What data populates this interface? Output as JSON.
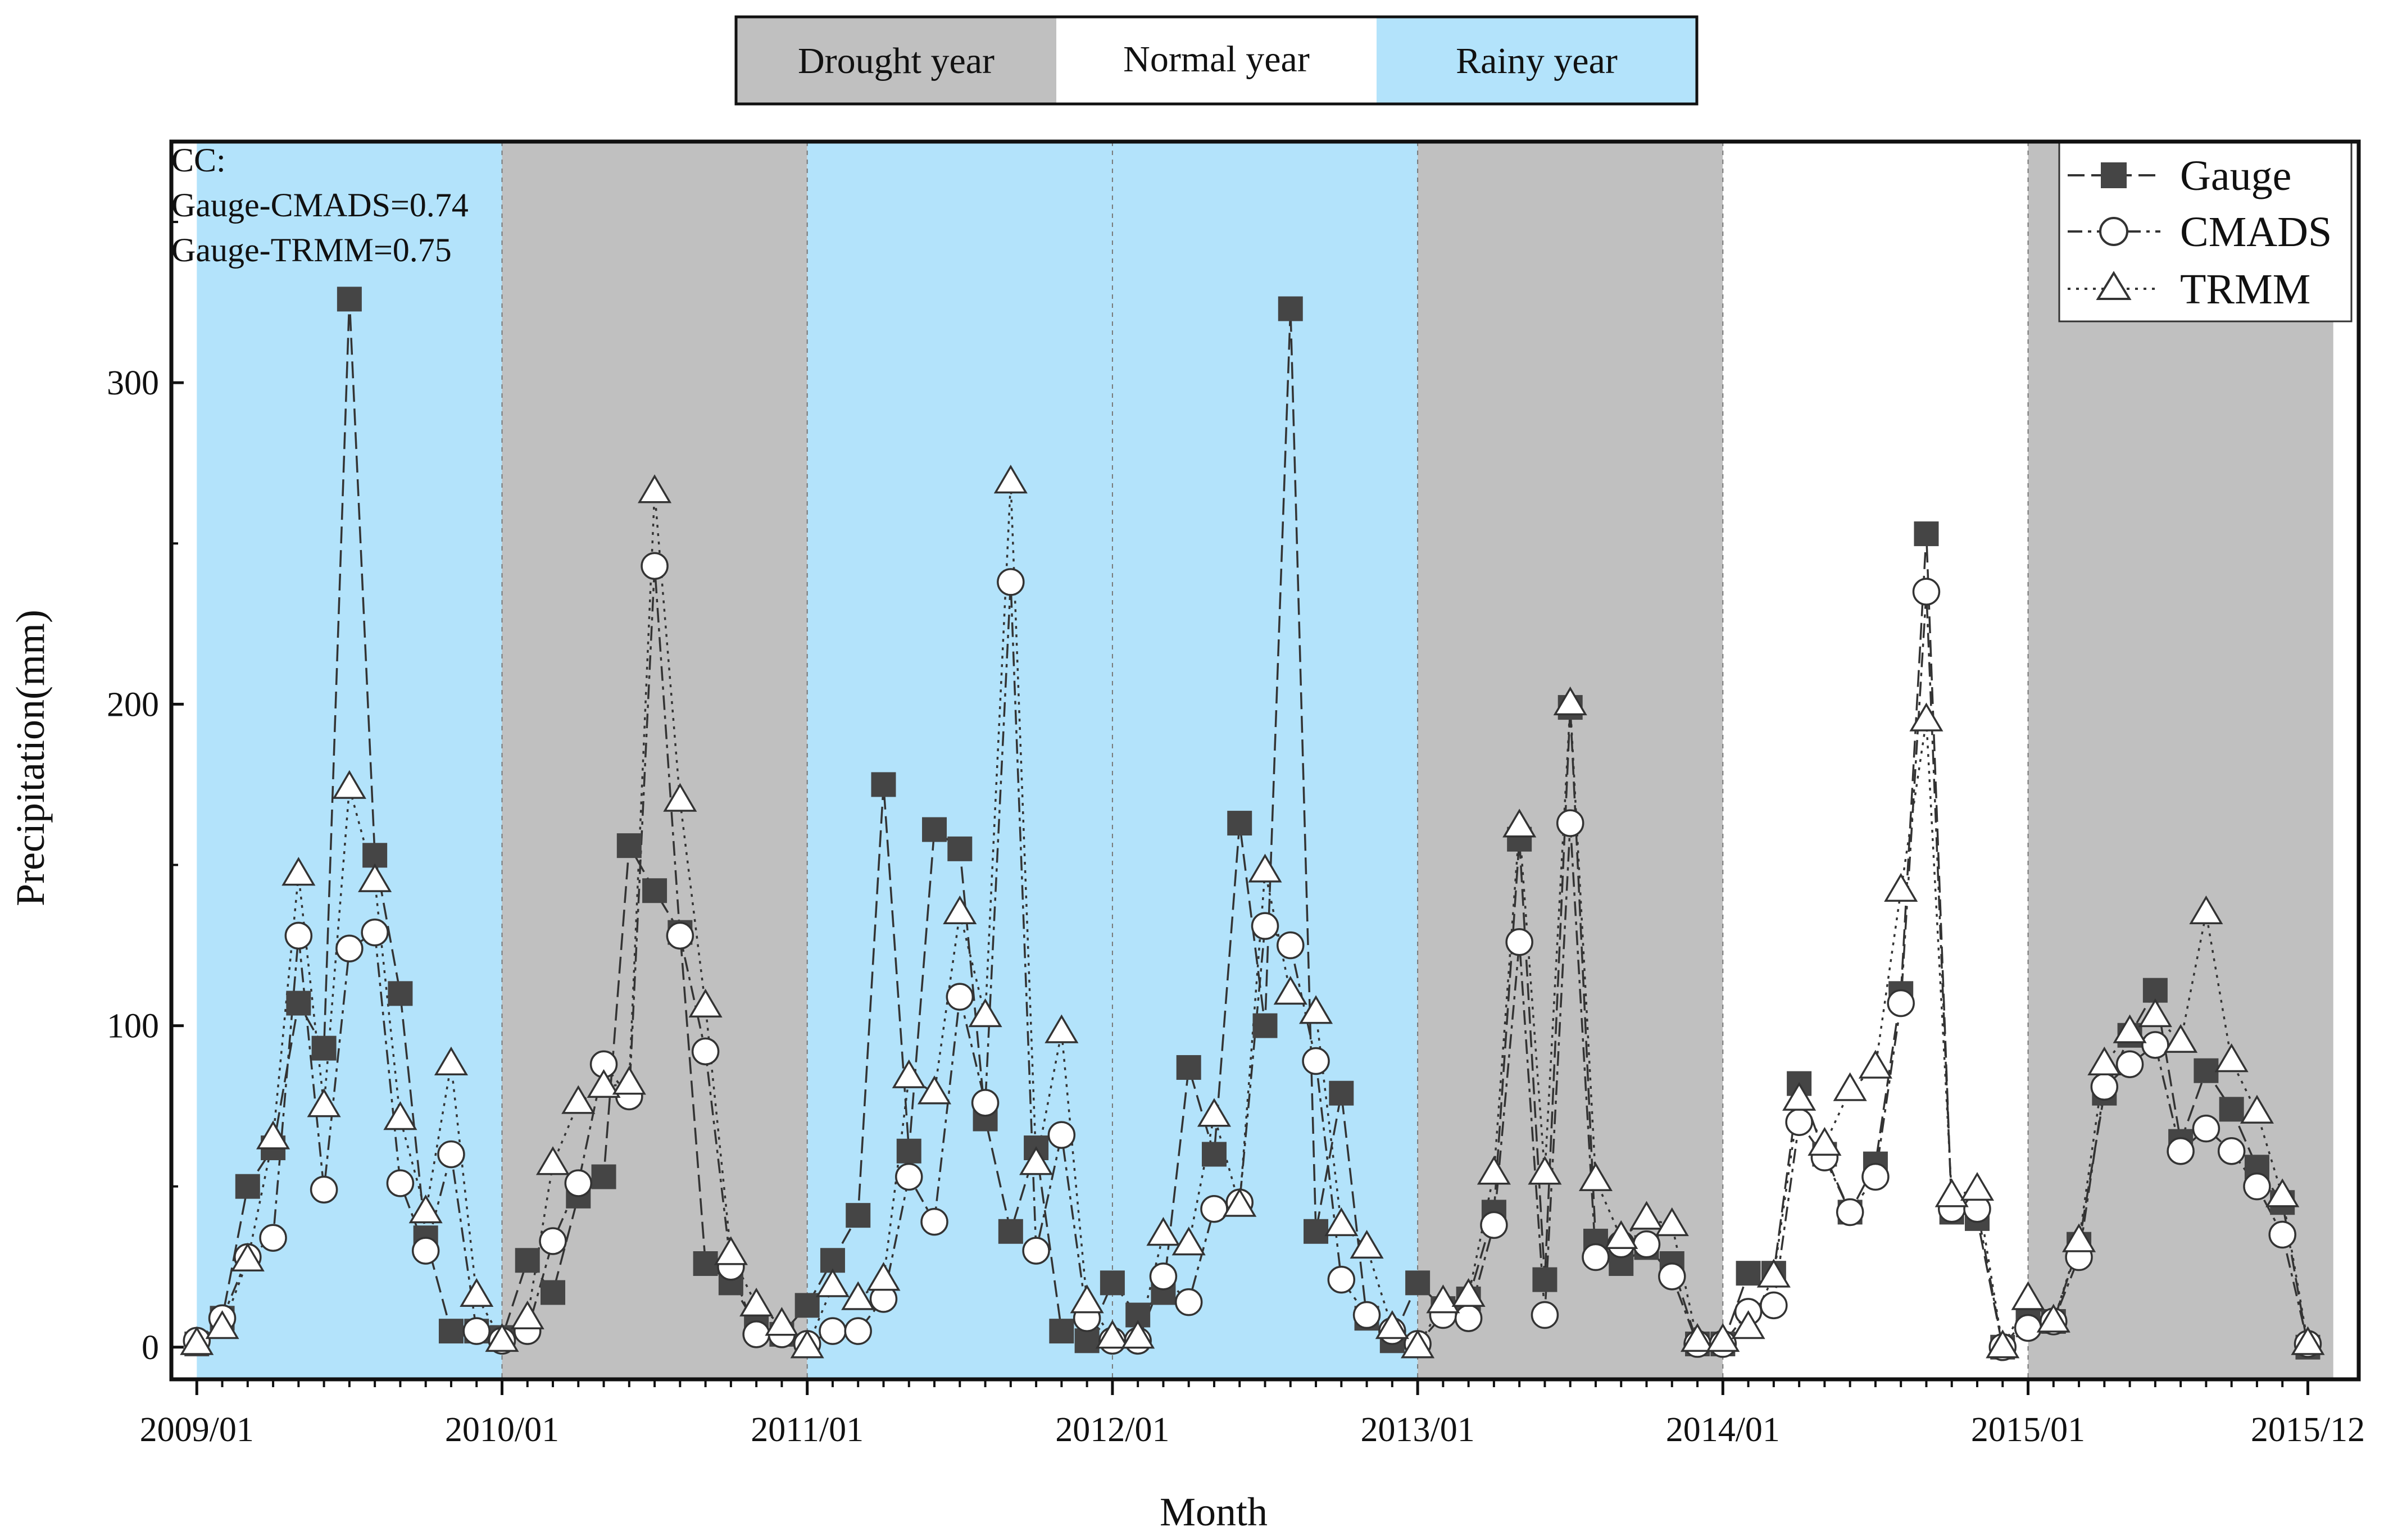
{
  "chart_data": {
    "type": "line",
    "title": "",
    "xlabel": "Month",
    "ylabel": "Precipitation(mm)",
    "ylim": [
      -10,
      375
    ],
    "yticks": [
      0,
      100,
      200,
      300
    ],
    "x_tick_labels": [
      "2009/01",
      "2010/01",
      "2011/01",
      "2012/01",
      "2013/01",
      "2014/01",
      "2015/01",
      "2015/12"
    ],
    "x_tick_months": [
      0,
      12,
      24,
      36,
      48,
      60,
      72,
      83
    ],
    "x_range_months": [
      -1,
      85
    ],
    "grid": false,
    "year_type_legend": [
      {
        "label": "Drought year",
        "color": "#c0c0c0"
      },
      {
        "label": "Normal year",
        "color": "#ffffff"
      },
      {
        "label": "Rainy year",
        "color": "#b3e3fb"
      }
    ],
    "year_bands": [
      {
        "year": "2009",
        "type": "Rainy year",
        "start": 0,
        "end": 12
      },
      {
        "year": "2010",
        "type": "Drought year",
        "start": 12,
        "end": 24
      },
      {
        "year": "2011",
        "type": "Rainy year",
        "start": 24,
        "end": 36
      },
      {
        "year": "2012",
        "type": "Rainy year",
        "start": 36,
        "end": 48
      },
      {
        "year": "2013",
        "type": "Drought year",
        "start": 48,
        "end": 60
      },
      {
        "year": "2014",
        "type": "Normal year",
        "start": 60,
        "end": 72
      },
      {
        "year": "2015",
        "type": "Drought year",
        "start": 72,
        "end": 84
      }
    ],
    "annotation": [
      "CC:",
      "Gauge-CMADS=0.74",
      "Gauge-TRMM=0.75"
    ],
    "legend_position": "top-right",
    "series": [
      {
        "name": "Gauge",
        "marker": "square-filled",
        "line": "dash",
        "values": [
          1,
          9,
          50,
          62,
          107,
          93,
          326,
          153,
          110,
          34,
          5,
          5,
          3,
          27,
          17,
          47,
          53,
          156,
          142,
          129,
          26,
          20,
          7,
          4,
          13,
          27,
          41,
          175,
          61,
          161,
          155,
          71,
          36,
          62,
          5,
          2,
          20,
          10,
          17,
          87,
          60,
          163,
          100,
          323,
          36,
          79,
          9,
          2,
          20,
          12,
          15,
          42,
          158,
          21,
          199,
          33,
          26,
          31,
          26,
          1,
          1,
          23,
          23,
          82,
          60,
          42,
          57,
          110,
          253,
          42,
          40,
          0,
          10,
          8,
          32,
          79,
          97,
          111,
          64,
          86,
          74,
          56,
          45,
          0
        ]
      },
      {
        "name": "CMADS",
        "marker": "circle-open",
        "line": "dashdot",
        "values": [
          2,
          9,
          28,
          34,
          128,
          49,
          124,
          129,
          51,
          30,
          60,
          5,
          2,
          5,
          33,
          51,
          88,
          78,
          243,
          128,
          92,
          25,
          4,
          4,
          1,
          5,
          5,
          15,
          53,
          39,
          109,
          76,
          238,
          30,
          66,
          9,
          2,
          2,
          22,
          14,
          43,
          45,
          131,
          125,
          89,
          21,
          10,
          5,
          1,
          10,
          9,
          38,
          126,
          10,
          163,
          28,
          32,
          32,
          22,
          1,
          1,
          11,
          13,
          70,
          59,
          42,
          53,
          107,
          235,
          43,
          43,
          0,
          6,
          8,
          28,
          81,
          88,
          94,
          61,
          68,
          61,
          50,
          35,
          1
        ]
      },
      {
        "name": "TRMM",
        "marker": "triangle-open",
        "line": "dot",
        "values": [
          1,
          6,
          27,
          65,
          147,
          75,
          174,
          145,
          71,
          42,
          88,
          16,
          2,
          9,
          57,
          76,
          81,
          82,
          266,
          170,
          106,
          29,
          13,
          7,
          0,
          19,
          15,
          21,
          84,
          79,
          135,
          103,
          269,
          57,
          98,
          14,
          3,
          3,
          35,
          32,
          72,
          44,
          148,
          110,
          104,
          38,
          31,
          6,
          0,
          14,
          16,
          54,
          162,
          54,
          200,
          52,
          34,
          40,
          38,
          2,
          2,
          6,
          22,
          77,
          63,
          80,
          87,
          142,
          195,
          47,
          49,
          0,
          15,
          8,
          33,
          88,
          98,
          103,
          95,
          135,
          89,
          73,
          47,
          1
        ]
      }
    ]
  }
}
